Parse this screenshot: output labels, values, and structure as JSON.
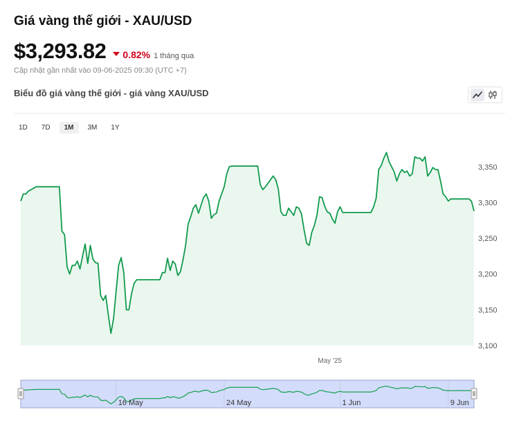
{
  "header": {
    "title": "Giá vàng thế giới - XAU/USD",
    "price": "$3,293.82",
    "change": "0.82%",
    "period": "1 tháng qua",
    "updated": "Cập nhật gần nhất vào 09-06-2025 09:30 (UTC +7)"
  },
  "chart_section": {
    "subtitle": "Biểu đồ giá vàng thế giới - giá vàng XAU/USD",
    "ranges": [
      "1D",
      "7D",
      "1M",
      "3M",
      "1Y"
    ],
    "active_range": "1M",
    "chart_types": [
      "line-chart-icon",
      "candlestick-icon"
    ]
  },
  "colors": {
    "line": "#119a4e",
    "fill": "#eaf7ee",
    "negative": "#d0021b",
    "navigator_fill": "#d3dcfb",
    "navigator_line": "#16a04f"
  },
  "chart_data": {
    "type": "area",
    "title": "",
    "xlabel": "",
    "ylabel": "",
    "ylim": [
      3100,
      3375
    ],
    "yticks": [
      3100,
      3150,
      3200,
      3250,
      3300,
      3350
    ],
    "ytick_labels": [
      "3,100",
      "3,150",
      "3,200",
      "3,250",
      "3,300",
      "3,350"
    ],
    "xticks": [
      {
        "label": "May '25",
        "i": 120
      }
    ],
    "grid": false,
    "navigator": {
      "ticks": [
        {
          "label": "16 May",
          "i": 37
        },
        {
          "label": "24 May",
          "i": 79
        },
        {
          "label": "1 Jun",
          "i": 124
        },
        {
          "label": "9 Jun",
          "i": 166
        }
      ]
    },
    "series": [
      {
        "values": [
          3302,
          3312,
          3312,
          3316,
          3318,
          3320,
          3322,
          3322,
          3322,
          3322,
          3322,
          3322,
          3322,
          3322,
          3322,
          3322,
          3260,
          3255,
          3210,
          3200,
          3212,
          3212,
          3218,
          3207,
          3225,
          3242,
          3215,
          3240,
          3221,
          3216,
          3215,
          3170,
          3163,
          3170,
          3143,
          3117,
          3137,
          3175,
          3212,
          3223,
          3202,
          3150,
          3150,
          3172,
          3187,
          3192,
          3192,
          3192,
          3192,
          3192,
          3192,
          3192,
          3192,
          3192,
          3192,
          3202,
          3202,
          3222,
          3205,
          3218,
          3214,
          3198,
          3203,
          3220,
          3240,
          3270,
          3280,
          3292,
          3297,
          3285,
          3296,
          3307,
          3312,
          3302,
          3278,
          3283,
          3285,
          3302,
          3312,
          3322,
          3340,
          3350,
          3351,
          3351,
          3351,
          3351,
          3351,
          3351,
          3351,
          3351,
          3351,
          3351,
          3351,
          3325,
          3318,
          3322,
          3327,
          3332,
          3337,
          3332,
          3319,
          3287,
          3282,
          3282,
          3292,
          3287,
          3282,
          3294,
          3292,
          3284,
          3262,
          3243,
          3240,
          3258,
          3268,
          3282,
          3308,
          3307,
          3295,
          3287,
          3285,
          3277,
          3271,
          3287,
          3294,
          3286,
          3286,
          3286,
          3286,
          3286,
          3286,
          3286,
          3286,
          3286,
          3286,
          3286,
          3286,
          3294,
          3306,
          3346,
          3352,
          3362,
          3370,
          3357,
          3350,
          3343,
          3330,
          3340,
          3346,
          3342,
          3344,
          3337,
          3340,
          3364,
          3362,
          3362,
          3358,
          3364,
          3337,
          3342,
          3349,
          3346,
          3346,
          3330,
          3312,
          3308,
          3302,
          3305,
          3305,
          3305,
          3305,
          3305,
          3305,
          3305,
          3305,
          3302,
          3288
        ]
      }
    ]
  }
}
